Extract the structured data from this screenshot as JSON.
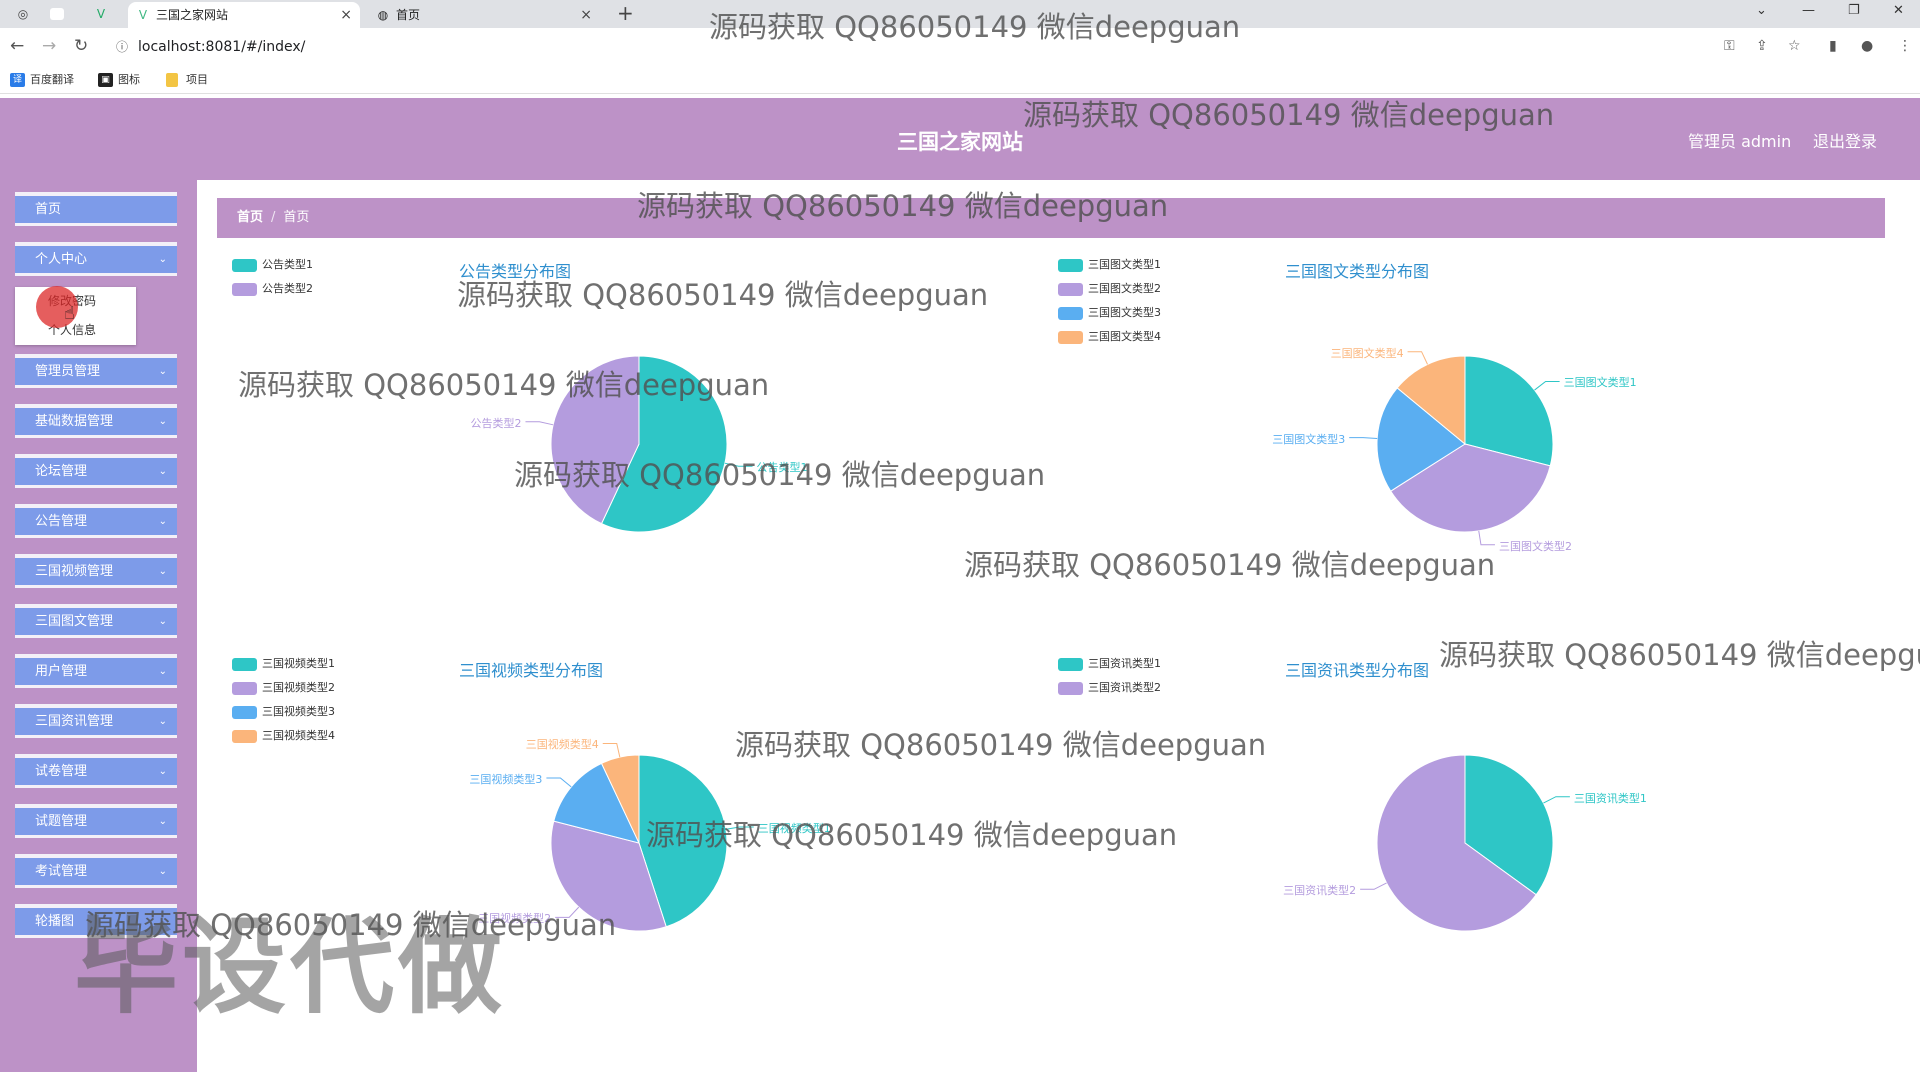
{
  "browser": {
    "tabs": [
      {
        "title": "三国之家网站",
        "active": true
      },
      {
        "title": "首页",
        "active": false
      }
    ],
    "url": "localhost:8081/#/index/",
    "bookmarks": [
      "百度翻译",
      "图标",
      "项目"
    ]
  },
  "header": {
    "title": "三国之家网站",
    "user": "管理员 admin",
    "logout": "退出登录"
  },
  "sidebar": {
    "items": [
      {
        "label": "首页",
        "has_chevron": false
      },
      {
        "label": "个人中心",
        "has_chevron": true
      },
      {
        "label": "管理员管理",
        "has_chevron": true
      },
      {
        "label": "基础数据管理",
        "has_chevron": true
      },
      {
        "label": "论坛管理",
        "has_chevron": true
      },
      {
        "label": "公告管理",
        "has_chevron": true
      },
      {
        "label": "三国视频管理",
        "has_chevron": true
      },
      {
        "label": "三国图文管理",
        "has_chevron": true
      },
      {
        "label": "用户管理",
        "has_chevron": true
      },
      {
        "label": "三国资讯管理",
        "has_chevron": true
      },
      {
        "label": "试卷管理",
        "has_chevron": true
      },
      {
        "label": "试题管理",
        "has_chevron": true
      },
      {
        "label": "考试管理",
        "has_chevron": true
      },
      {
        "label": "轮播图",
        "has_chevron": false
      }
    ],
    "submenu": [
      "修改密码",
      "个人信息"
    ]
  },
  "breadcrumb": [
    "首页",
    "首页"
  ],
  "colors": {
    "teal": "#2ec6c6",
    "purple": "#b49cde",
    "blue": "#5aaef1",
    "orange": "#fbb57b",
    "header": "#bd92c7",
    "menu": "#7d9be9"
  },
  "chart_data": [
    {
      "type": "pie",
      "title": "公告类型分布图",
      "legend_placement": "top-left",
      "categories": [
        "公告类型1",
        "公告类型2"
      ],
      "values": [
        57,
        43
      ]
    },
    {
      "type": "pie",
      "title": "三国图文类型分布图",
      "legend_placement": "top-left",
      "categories": [
        "三国图文类型1",
        "三国图文类型2",
        "三国图文类型3",
        "三国图文类型4"
      ],
      "values": [
        29,
        37,
        20,
        14
      ]
    },
    {
      "type": "pie",
      "title": "三国视频类型分布图",
      "legend_placement": "top-left",
      "categories": [
        "三国视频类型1",
        "三国视频类型2",
        "三国视频类型3",
        "三国视频类型4"
      ],
      "values": [
        45,
        34,
        14,
        7
      ]
    },
    {
      "type": "pie",
      "title": "三国资讯类型分布图",
      "legend_placement": "top-left",
      "categories": [
        "三国资讯类型1",
        "三国资讯类型2"
      ],
      "values": [
        35,
        65
      ]
    }
  ],
  "overlays": {
    "watermark": "源码获取 QQ86050149 微信deepguan",
    "stamp": "毕设代做"
  }
}
